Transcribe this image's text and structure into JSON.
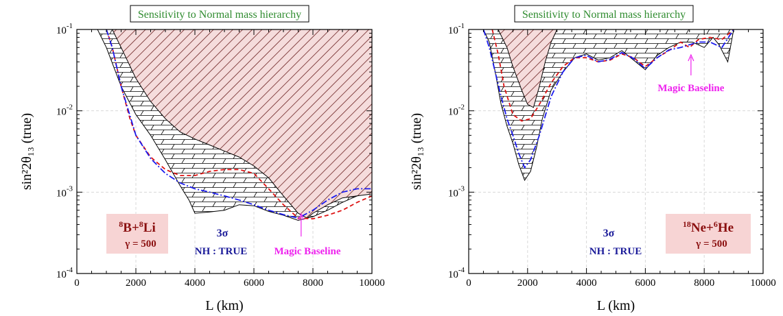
{
  "chart_data": [
    {
      "type": "line",
      "title": "Sensitivity to Normal mass hierarchy",
      "xlabel": "L (km)",
      "ylabel": "sin²2θ₁₃ (true)",
      "xlim": [
        0,
        10000
      ],
      "ylim": [
        0.0001,
        0.1
      ],
      "yscale": "log",
      "grid": true,
      "x_ticks": [
        "0",
        "2000",
        "4000",
        "6000",
        "8000",
        "10000"
      ],
      "beam_label": {
        "a": "8",
        "b": "B",
        "plus": "+",
        "c": "8",
        "d": "Li",
        "gamma": "γ = 500"
      },
      "sigma_label": "3σ",
      "truth_label": "NH : TRUE",
      "magic_label": "Magic Baseline",
      "magic_x": 7600,
      "series": [
        {
          "style": "hatched-region-lower",
          "x": [
            700,
            1000,
            1500,
            2000,
            2500,
            3000,
            3500,
            3800,
            4000,
            4500,
            5000,
            5500,
            6000,
            6500,
            7000,
            7500,
            8000,
            8500,
            9000,
            9500,
            10000
          ],
          "y": [
            0.1,
            0.06,
            0.02,
            0.009,
            0.005,
            0.0025,
            0.0012,
            0.0008,
            0.00055,
            0.00057,
            0.0006,
            0.0007,
            0.00068,
            0.00058,
            0.00052,
            0.00045,
            0.0005,
            0.0006,
            0.00075,
            0.0009,
            0.00105
          ]
        },
        {
          "style": "shaded-region-lower",
          "x": [
            1000,
            1200,
            1500,
            2000,
            2500,
            3000,
            3500,
            4000,
            4500,
            5000,
            5500,
            6000,
            6500,
            7000,
            7500,
            7800,
            8000,
            8500,
            9000,
            9500,
            10000
          ],
          "y": [
            0.1,
            0.1,
            0.06,
            0.025,
            0.013,
            0.008,
            0.0055,
            0.0045,
            0.0038,
            0.0032,
            0.0027,
            0.0021,
            0.0015,
            0.0009,
            0.00055,
            0.00048,
            0.00055,
            0.0007,
            0.00085,
            0.0009,
            0.00095
          ]
        },
        {
          "style": "red-dashed",
          "x": [
            1000,
            1200,
            1500,
            1800,
            2000,
            2500,
            3000,
            3500,
            4000,
            4500,
            5000,
            5500,
            6000,
            6500,
            7000,
            7500,
            8000,
            8500,
            9000,
            9500,
            10000
          ],
          "y": [
            0.1,
            0.06,
            0.02,
            0.008,
            0.005,
            0.0027,
            0.0019,
            0.0016,
            0.0016,
            0.0018,
            0.0019,
            0.0019,
            0.0017,
            0.0011,
            0.0007,
            0.00048,
            0.00047,
            0.00052,
            0.0006,
            0.00075,
            0.0009
          ]
        },
        {
          "style": "blue-dashdot",
          "x": [
            1000,
            1200,
            1500,
            2000,
            2500,
            3000,
            3500,
            4000,
            4500,
            5000,
            5500,
            6000,
            6500,
            7000,
            7500,
            8000,
            8500,
            9000,
            9500,
            10000
          ],
          "y": [
            0.1,
            0.06,
            0.02,
            0.005,
            0.0026,
            0.0017,
            0.0013,
            0.0011,
            0.001,
            0.0009,
            0.0008,
            0.0007,
            0.0006,
            0.00053,
            0.00048,
            0.0006,
            0.0008,
            0.001,
            0.0011,
            0.0011
          ]
        }
      ]
    },
    {
      "type": "line",
      "title": "Sensitivity to Normal mass hierarchy",
      "xlabel": "L (km)",
      "ylabel": "sin²2θ₁₃ (true)",
      "xlim": [
        0,
        10000
      ],
      "ylim": [
        0.0001,
        0.1
      ],
      "yscale": "log",
      "grid": true,
      "x_ticks": [
        "0",
        "2000",
        "4000",
        "6000",
        "8000",
        "10000"
      ],
      "beam_label": {
        "a": "18",
        "b": "Ne",
        "plus": "+",
        "c": "6",
        "d": "He",
        "gamma": "γ = 500"
      },
      "sigma_label": "3σ",
      "truth_label": "NH : TRUE",
      "magic_label": "Magic Baseline",
      "magic_x": 7550,
      "series": [
        {
          "style": "hatched-region-lower",
          "x": [
            500,
            700,
            900,
            1100,
            1300,
            1500,
            1700,
            1900,
            2100,
            2300,
            2500,
            2800,
            3200,
            3600,
            4000,
            4400,
            4800,
            5200,
            5500,
            6000,
            6400,
            6800,
            7200,
            7600,
            8000,
            8300,
            8500,
            8800,
            9000
          ],
          "y": [
            0.1,
            0.07,
            0.03,
            0.012,
            0.0065,
            0.004,
            0.0022,
            0.0014,
            0.0018,
            0.0035,
            0.008,
            0.018,
            0.03,
            0.045,
            0.05,
            0.042,
            0.045,
            0.055,
            0.045,
            0.032,
            0.048,
            0.06,
            0.07,
            0.07,
            0.06,
            0.08,
            0.065,
            0.04,
            0.1
          ]
        },
        {
          "style": "shaded-region-lower",
          "x": [
            1000,
            1300,
            1500,
            1800,
            2000,
            2200,
            2400,
            2600,
            2800,
            3000
          ],
          "y": [
            0.1,
            0.06,
            0.035,
            0.018,
            0.012,
            0.011,
            0.02,
            0.04,
            0.07,
            0.1
          ]
        },
        {
          "style": "red-dashed",
          "x": [
            800,
            1000,
            1200,
            1500,
            1800,
            2100,
            2400,
            2800,
            3200,
            3600,
            4000,
            4400,
            4800,
            5200,
            5600,
            6000,
            6400,
            6800,
            7200,
            7500,
            7800,
            8200,
            8600,
            9000
          ],
          "y": [
            0.1,
            0.05,
            0.02,
            0.009,
            0.0075,
            0.008,
            0.012,
            0.022,
            0.035,
            0.045,
            0.045,
            0.04,
            0.042,
            0.05,
            0.045,
            0.035,
            0.045,
            0.055,
            0.07,
            0.06,
            0.075,
            0.08,
            0.075,
            0.1
          ]
        },
        {
          "style": "blue-dashdot",
          "x": [
            500,
            700,
            900,
            1100,
            1300,
            1500,
            1700,
            1900,
            2100,
            2400,
            2800,
            3200,
            3600,
            4000,
            4400,
            4800,
            5200,
            5600,
            6000,
            6400,
            6800,
            7200,
            7500,
            7800,
            8200,
            8600,
            9000
          ],
          "y": [
            0.1,
            0.06,
            0.03,
            0.015,
            0.008,
            0.005,
            0.003,
            0.002,
            0.0025,
            0.005,
            0.015,
            0.03,
            0.045,
            0.048,
            0.04,
            0.043,
            0.052,
            0.044,
            0.033,
            0.045,
            0.056,
            0.06,
            0.065,
            0.07,
            0.07,
            0.06,
            0.1
          ]
        }
      ]
    }
  ]
}
